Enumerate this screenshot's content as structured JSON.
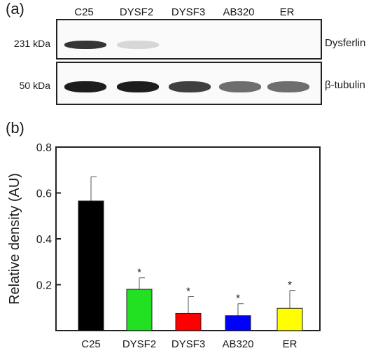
{
  "panel_a": {
    "label": "(a)",
    "lanes": [
      "C25",
      "DYSF2",
      "DYSF3",
      "AB320",
      "ER"
    ],
    "blots": [
      {
        "marker": "231 kDa",
        "protein": "Dysferlin",
        "band_intensity": [
          0.85,
          0.15,
          0,
          0,
          0
        ]
      },
      {
        "marker": "50 kDa",
        "protein": "β-tubulin",
        "band_intensity": [
          0.95,
          0.95,
          0.8,
          0.6,
          0.6
        ]
      }
    ]
  },
  "panel_b": {
    "label": "(b)"
  },
  "chart_data": {
    "type": "bar",
    "categories": [
      "C25",
      "DYSF2",
      "DYSF3",
      "AB320",
      "ER"
    ],
    "values": [
      0.565,
      0.18,
      0.075,
      0.065,
      0.097
    ],
    "errors": [
      0.105,
      0.05,
      0.073,
      0.052,
      0.078
    ],
    "significance": [
      "",
      "*",
      "*",
      "*",
      "*"
    ],
    "colors": [
      "#000000",
      "#22e022",
      "#ff0000",
      "#0000ff",
      "#ffff00"
    ],
    "ylabel": "Relative density (AU)",
    "xlabel": "",
    "ylim": [
      0,
      0.8
    ],
    "yticks": [
      0.2,
      0.4,
      0.6,
      0.8
    ],
    "ytick_labels": [
      "0.2",
      "0.4",
      "0.6",
      "0.8"
    ],
    "grid": false
  }
}
